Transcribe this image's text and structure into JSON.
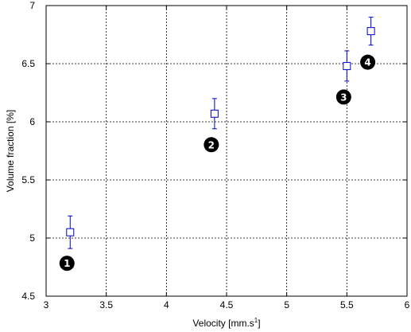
{
  "chart_data": {
    "type": "scatter",
    "title": "",
    "xlabel": "Velocity [mm.s",
    "xlabel_superscript": "1",
    "xlabel_suffix": "]",
    "ylabel": "Volume fraction [%]",
    "xlim": [
      3,
      6
    ],
    "ylim": [
      4.5,
      7
    ],
    "xticks": [
      "3",
      "3.5",
      "4",
      "4.5",
      "5",
      "5.5",
      "6"
    ],
    "yticks": [
      "4.5",
      "5",
      "5.5",
      "6",
      "6.5",
      "7"
    ],
    "grid": true,
    "marker_color": "#0000cc",
    "points": [
      {
        "x": 3.2,
        "y": 5.05,
        "err": 0.14,
        "label": "1"
      },
      {
        "x": 4.4,
        "y": 6.07,
        "err": 0.13,
        "label": "2"
      },
      {
        "x": 5.5,
        "y": 6.48,
        "err": 0.13,
        "label": "3"
      },
      {
        "x": 5.7,
        "y": 6.78,
        "err": 0.12,
        "label": "4"
      }
    ],
    "point_label_position": "below-left"
  }
}
